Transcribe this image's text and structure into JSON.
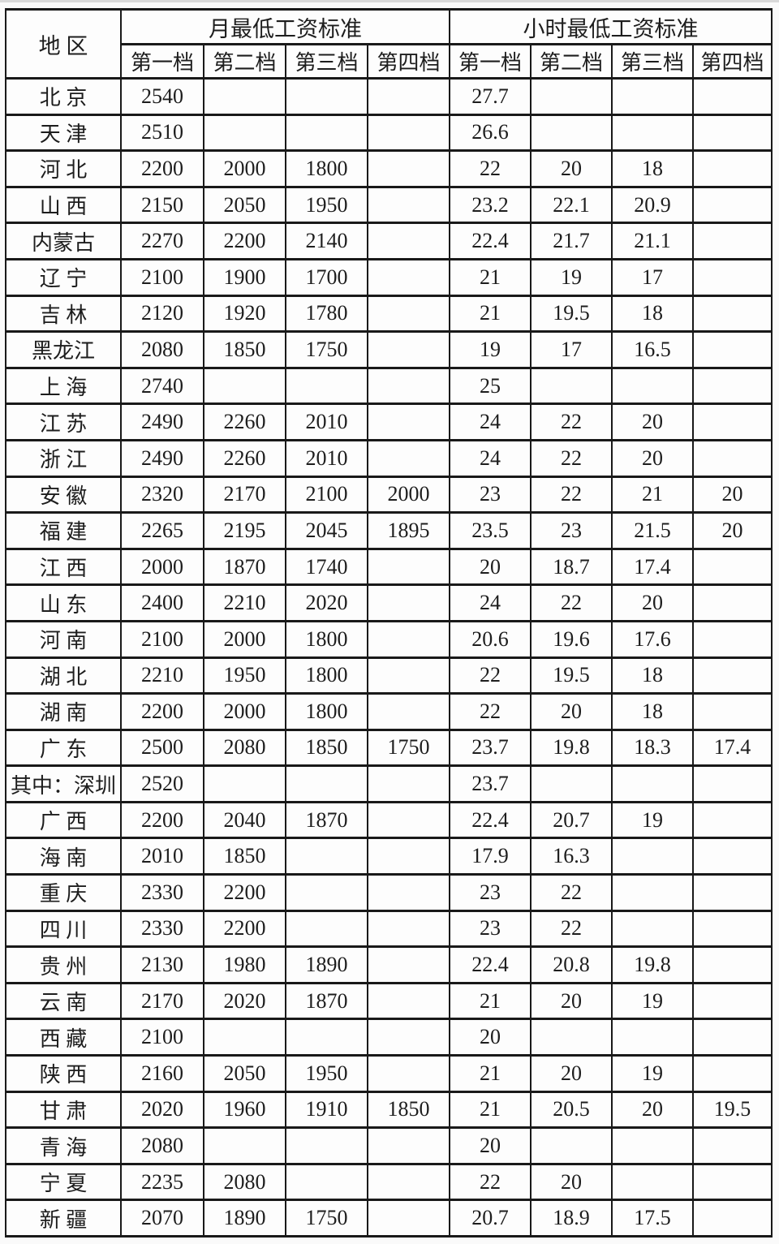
{
  "page": {
    "background": "#fafafa",
    "cell_background": "#fdfdfd",
    "border_color": "#191919",
    "text_color": "#1d1d1d"
  },
  "chart_data": {
    "type": "table",
    "title": "",
    "header": {
      "region": "地 区",
      "monthly_group": "月最低工资标准",
      "hourly_group": "小时最低工资标准",
      "tiers": [
        "第一档",
        "第二档",
        "第三档",
        "第四档"
      ]
    },
    "layout": {
      "grid": true,
      "borders": "all",
      "region_col_width": 142,
      "tier_col_width": 100
    },
    "rows": [
      {
        "region": "北 京",
        "monthly": [
          "2540",
          "",
          "",
          ""
        ],
        "hourly": [
          "27.7",
          "",
          "",
          ""
        ]
      },
      {
        "region": "天 津",
        "monthly": [
          "2510",
          "",
          "",
          ""
        ],
        "hourly": [
          "26.6",
          "",
          "",
          ""
        ]
      },
      {
        "region": "河 北",
        "monthly": [
          "2200",
          "2000",
          "1800",
          ""
        ],
        "hourly": [
          "22",
          "20",
          "18",
          ""
        ]
      },
      {
        "region": "山 西",
        "monthly": [
          "2150",
          "2050",
          "1950",
          ""
        ],
        "hourly": [
          "23.2",
          "22.1",
          "20.9",
          ""
        ]
      },
      {
        "region": "内蒙古",
        "monthly": [
          "2270",
          "2200",
          "2140",
          ""
        ],
        "hourly": [
          "22.4",
          "21.7",
          "21.1",
          ""
        ]
      },
      {
        "region": "辽 宁",
        "monthly": [
          "2100",
          "1900",
          "1700",
          ""
        ],
        "hourly": [
          "21",
          "19",
          "17",
          ""
        ]
      },
      {
        "region": "吉 林",
        "monthly": [
          "2120",
          "1920",
          "1780",
          ""
        ],
        "hourly": [
          "21",
          "19.5",
          "18",
          ""
        ]
      },
      {
        "region": "黑龙江",
        "monthly": [
          "2080",
          "1850",
          "1750",
          ""
        ],
        "hourly": [
          "19",
          "17",
          "16.5",
          ""
        ]
      },
      {
        "region": "上 海",
        "monthly": [
          "2740",
          "",
          "",
          ""
        ],
        "hourly": [
          "25",
          "",
          "",
          ""
        ]
      },
      {
        "region": "江 苏",
        "monthly": [
          "2490",
          "2260",
          "2010",
          ""
        ],
        "hourly": [
          "24",
          "22",
          "20",
          ""
        ]
      },
      {
        "region": "浙 江",
        "monthly": [
          "2490",
          "2260",
          "2010",
          ""
        ],
        "hourly": [
          "24",
          "22",
          "20",
          ""
        ]
      },
      {
        "region": "安 徽",
        "monthly": [
          "2320",
          "2170",
          "2100",
          "2000"
        ],
        "hourly": [
          "23",
          "22",
          "21",
          "20"
        ]
      },
      {
        "region": "福 建",
        "monthly": [
          "2265",
          "2195",
          "2045",
          "1895"
        ],
        "hourly": [
          "23.5",
          "23",
          "21.5",
          "20"
        ]
      },
      {
        "region": "江 西",
        "monthly": [
          "2000",
          "1870",
          "1740",
          ""
        ],
        "hourly": [
          "20",
          "18.7",
          "17.4",
          ""
        ]
      },
      {
        "region": "山 东",
        "monthly": [
          "2400",
          "2210",
          "2020",
          ""
        ],
        "hourly": [
          "24",
          "22",
          "20",
          ""
        ]
      },
      {
        "region": "河 南",
        "monthly": [
          "2100",
          "2000",
          "1800",
          ""
        ],
        "hourly": [
          "20.6",
          "19.6",
          "17.6",
          ""
        ]
      },
      {
        "region": "湖 北",
        "monthly": [
          "2210",
          "1950",
          "1800",
          ""
        ],
        "hourly": [
          "22",
          "19.5",
          "18",
          ""
        ]
      },
      {
        "region": "湖 南",
        "monthly": [
          "2200",
          "2000",
          "1800",
          ""
        ],
        "hourly": [
          "22",
          "20",
          "18",
          ""
        ]
      },
      {
        "region": "广 东",
        "monthly": [
          "2500",
          "2080",
          "1850",
          "1750"
        ],
        "hourly": [
          "23.7",
          "19.8",
          "18.3",
          "17.4"
        ]
      },
      {
        "region": "其中：深圳",
        "monthly": [
          "2520",
          "",
          "",
          ""
        ],
        "hourly": [
          "23.7",
          "",
          "",
          ""
        ]
      },
      {
        "region": "广 西",
        "monthly": [
          "2200",
          "2040",
          "1870",
          ""
        ],
        "hourly": [
          "22.4",
          "20.7",
          "19",
          ""
        ]
      },
      {
        "region": "海 南",
        "monthly": [
          "2010",
          "1850",
          "",
          ""
        ],
        "hourly": [
          "17.9",
          "16.3",
          "",
          ""
        ]
      },
      {
        "region": "重 庆",
        "monthly": [
          "2330",
          "2200",
          "",
          ""
        ],
        "hourly": [
          "23",
          "22",
          "",
          ""
        ]
      },
      {
        "region": "四 川",
        "monthly": [
          "2330",
          "2200",
          "",
          ""
        ],
        "hourly": [
          "23",
          "22",
          "",
          ""
        ]
      },
      {
        "region": "贵 州",
        "monthly": [
          "2130",
          "1980",
          "1890",
          ""
        ],
        "hourly": [
          "22.4",
          "20.8",
          "19.8",
          ""
        ]
      },
      {
        "region": "云 南",
        "monthly": [
          "2170",
          "2020",
          "1870",
          ""
        ],
        "hourly": [
          "21",
          "20",
          "19",
          ""
        ]
      },
      {
        "region": "西 藏",
        "monthly": [
          "2100",
          "",
          "",
          ""
        ],
        "hourly": [
          "20",
          "",
          "",
          ""
        ]
      },
      {
        "region": "陕 西",
        "monthly": [
          "2160",
          "2050",
          "1950",
          ""
        ],
        "hourly": [
          "21",
          "20",
          "19",
          ""
        ]
      },
      {
        "region": "甘 肃",
        "monthly": [
          "2020",
          "1960",
          "1910",
          "1850"
        ],
        "hourly": [
          "21",
          "20.5",
          "20",
          "19.5"
        ]
      },
      {
        "region": "青 海",
        "monthly": [
          "2080",
          "",
          "",
          ""
        ],
        "hourly": [
          "20",
          "",
          "",
          ""
        ]
      },
      {
        "region": "宁 夏",
        "monthly": [
          "2235",
          "2080",
          "",
          ""
        ],
        "hourly": [
          "22",
          "20",
          "",
          ""
        ]
      },
      {
        "region": "新 疆",
        "monthly": [
          "2070",
          "1890",
          "1750",
          ""
        ],
        "hourly": [
          "20.7",
          "18.9",
          "17.5",
          ""
        ]
      }
    ]
  }
}
